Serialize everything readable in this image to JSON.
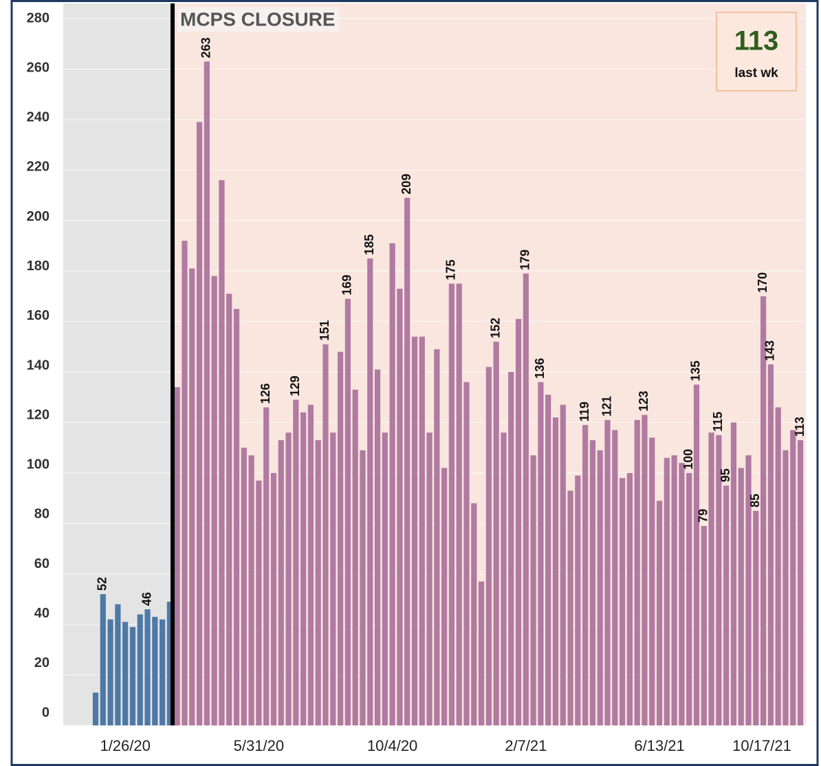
{
  "chart_data": {
    "type": "bar",
    "title": "MCPS CLOSURE",
    "kpi": {
      "value": 113,
      "label": "last wk"
    },
    "categories": [
      null,
      null,
      null,
      null,
      "1/26/20",
      null,
      null,
      null,
      null,
      null,
      null,
      null,
      null,
      null,
      null,
      null,
      null,
      null,
      null,
      null,
      null,
      null,
      "5/31/20",
      null,
      null,
      null,
      null,
      null,
      null,
      null,
      null,
      null,
      null,
      null,
      null,
      null,
      null,
      null,
      null,
      null,
      "10/4/20",
      null,
      null,
      null,
      null,
      null,
      null,
      null,
      null,
      null,
      null,
      null,
      null,
      null,
      null,
      null,
      null,
      null,
      "2/7/21",
      null,
      null,
      null,
      null,
      null,
      null,
      null,
      null,
      null,
      null,
      null,
      null,
      null,
      null,
      null,
      null,
      null,
      "6/13/21",
      null,
      null,
      null,
      null,
      null,
      null,
      null,
      null,
      null,
      null,
      null,
      null,
      null,
      null,
      null,
      null,
      null,
      "10/17/21",
      null
    ],
    "series": [
      {
        "color": "#4e79a7",
        "values": [
          13,
          52,
          42,
          48,
          41,
          39,
          44,
          46,
          43,
          42,
          49,
          null,
          null,
          null,
          null,
          null,
          null,
          null,
          null,
          null,
          null,
          null,
          null,
          null,
          null,
          null,
          null,
          null,
          null,
          null,
          null,
          null,
          null,
          null,
          null,
          null,
          null,
          null,
          null,
          null,
          null,
          null,
          null,
          null,
          null,
          null,
          null,
          null,
          null,
          null,
          null,
          null,
          null,
          null,
          null,
          null,
          null,
          null,
          null,
          null,
          null,
          null,
          null,
          null,
          null,
          null,
          null,
          null,
          null,
          null,
          null,
          null,
          null,
          null,
          null,
          null,
          null,
          null,
          null,
          null,
          null,
          null,
          null,
          null,
          null,
          null,
          null,
          null,
          null,
          null,
          null,
          null,
          null,
          null,
          null,
          null
        ],
        "value_labels": [
          null,
          "52",
          null,
          null,
          null,
          null,
          null,
          "46",
          null,
          null,
          null,
          null,
          null,
          null,
          null,
          null,
          null,
          null,
          null,
          null,
          null,
          null,
          null,
          null,
          null,
          null,
          null,
          null,
          null,
          null,
          null,
          null,
          null,
          null,
          null,
          null,
          null,
          null,
          null,
          null,
          null,
          null,
          null,
          null,
          null,
          null,
          null,
          null,
          null,
          null,
          null,
          null,
          null,
          null,
          null,
          null,
          null,
          null,
          null,
          null,
          null,
          null,
          null,
          null,
          null,
          null,
          null,
          null,
          null,
          null,
          null,
          null,
          null,
          null,
          null,
          null,
          null,
          null,
          null,
          null,
          null,
          null,
          null,
          null,
          null,
          null,
          null,
          null,
          null,
          null,
          null,
          null,
          null,
          null,
          null,
          null
        ]
      },
      {
        "color": "#b07aa1",
        "values": [
          null,
          null,
          null,
          null,
          null,
          null,
          null,
          null,
          null,
          null,
          null,
          134,
          192,
          181,
          239,
          263,
          178,
          216,
          171,
          165,
          110,
          107,
          97,
          126,
          100,
          113,
          116,
          129,
          124,
          127,
          113,
          151,
          116,
          148,
          169,
          133,
          109,
          185,
          141,
          116,
          191,
          173,
          209,
          154,
          154,
          116,
          149,
          102,
          175,
          175,
          136,
          88,
          57,
          142,
          152,
          116,
          140,
          161,
          179,
          107,
          136,
          131,
          122,
          127,
          93,
          99,
          119,
          113,
          109,
          121,
          117,
          98,
          100,
          121,
          123,
          114,
          89,
          106,
          107,
          104,
          100,
          135,
          79,
          116,
          115,
          95,
          120,
          102,
          107,
          85,
          170,
          143,
          126,
          109,
          117,
          113
        ],
        "value_labels": [
          null,
          null,
          null,
          null,
          null,
          null,
          null,
          null,
          null,
          null,
          null,
          null,
          null,
          null,
          null,
          "263",
          null,
          null,
          null,
          null,
          null,
          null,
          null,
          "126",
          null,
          null,
          null,
          "129",
          null,
          null,
          null,
          "151",
          null,
          null,
          "169",
          null,
          null,
          "185",
          null,
          null,
          null,
          null,
          "209",
          null,
          null,
          null,
          null,
          null,
          "175",
          null,
          null,
          null,
          null,
          null,
          "152",
          null,
          null,
          null,
          "179",
          null,
          "136",
          null,
          null,
          null,
          null,
          null,
          "119",
          null,
          null,
          "121",
          null,
          null,
          null,
          null,
          "123",
          null,
          null,
          null,
          null,
          null,
          "100",
          "135",
          "79",
          null,
          "115",
          "95",
          null,
          null,
          null,
          "85",
          "170",
          "143",
          null,
          null,
          null,
          "113"
        ]
      }
    ],
    "ylim": [
      0,
      286
    ],
    "yticks": [
      0,
      20,
      40,
      60,
      80,
      100,
      120,
      140,
      160,
      180,
      200,
      220,
      240,
      260,
      280
    ],
    "grid": true
  }
}
